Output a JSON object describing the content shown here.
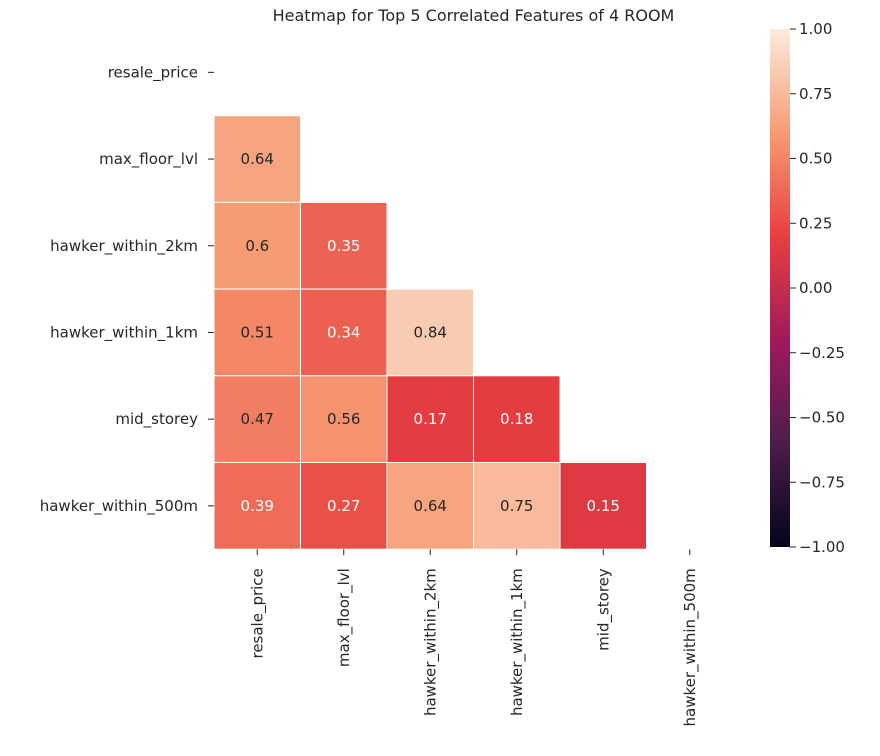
{
  "chart_data": {
    "type": "heatmap",
    "title": "Heatmap for Top 5 Correlated Features of 4 ROOM",
    "labels": [
      "resale_price",
      "max_floor_lvl",
      "hawker_within_2km",
      "hawker_within_1km",
      "mid_storey",
      "hawker_within_500m"
    ],
    "mask": "upper-triangle-including-diagonal",
    "cells": [
      {
        "row": 1,
        "col": 0,
        "value": 0.64,
        "label": "0.64"
      },
      {
        "row": 2,
        "col": 0,
        "value": 0.6,
        "label": "0.6"
      },
      {
        "row": 2,
        "col": 1,
        "value": 0.35,
        "label": "0.35"
      },
      {
        "row": 3,
        "col": 0,
        "value": 0.51,
        "label": "0.51"
      },
      {
        "row": 3,
        "col": 1,
        "value": 0.34,
        "label": "0.34"
      },
      {
        "row": 3,
        "col": 2,
        "value": 0.84,
        "label": "0.84"
      },
      {
        "row": 4,
        "col": 0,
        "value": 0.47,
        "label": "0.47"
      },
      {
        "row": 4,
        "col": 1,
        "value": 0.56,
        "label": "0.56"
      },
      {
        "row": 4,
        "col": 2,
        "value": 0.17,
        "label": "0.17"
      },
      {
        "row": 4,
        "col": 3,
        "value": 0.18,
        "label": "0.18"
      },
      {
        "row": 5,
        "col": 0,
        "value": 0.39,
        "label": "0.39"
      },
      {
        "row": 5,
        "col": 1,
        "value": 0.27,
        "label": "0.27"
      },
      {
        "row": 5,
        "col": 2,
        "value": 0.64,
        "label": "0.64"
      },
      {
        "row": 5,
        "col": 3,
        "value": 0.75,
        "label": "0.75"
      },
      {
        "row": 5,
        "col": 4,
        "value": 0.15,
        "label": "0.15"
      }
    ],
    "colorbar": {
      "vmin": -1.0,
      "vmax": 1.0,
      "ticks": [
        1.0,
        0.75,
        0.5,
        0.25,
        0.0,
        -0.25,
        -0.5,
        -0.75,
        -1.0
      ],
      "tick_labels": [
        "1.00",
        "0.75",
        "0.50",
        "0.25",
        "0.00",
        "−0.25",
        "−0.50",
        "−0.75",
        "−1.00"
      ],
      "colormap": "rocket",
      "colormap_stops": [
        "#03051a",
        "#4c1d4b",
        "#a11a5b",
        "#e83f3f",
        "#f69c73",
        "#faebdd"
      ]
    },
    "grid": false,
    "legend": "colorbar-right"
  }
}
